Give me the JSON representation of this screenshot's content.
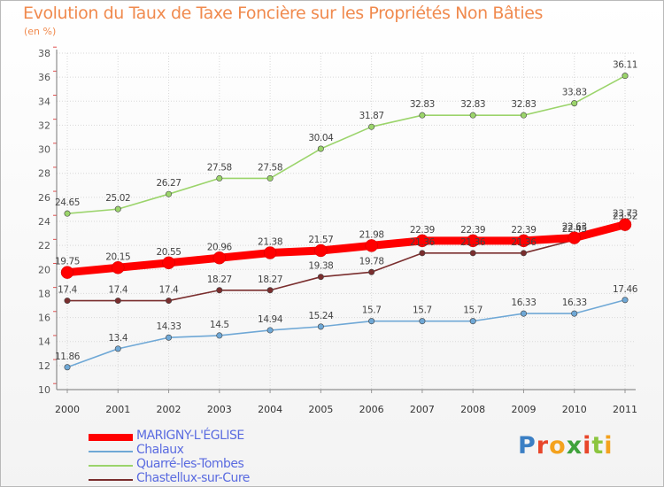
{
  "header": {
    "title": "Evolution du Taux de Taxe Foncière sur les Propriétés Non Bâties",
    "subtitle": "(en %)"
  },
  "logo": {
    "text": "Proxiti"
  },
  "chart_data": {
    "type": "line",
    "x": [
      "2000",
      "2001",
      "2002",
      "2003",
      "2004",
      "2005",
      "2006",
      "2007",
      "2008",
      "2009",
      "2010",
      "2011"
    ],
    "ylim": [
      10,
      38
    ],
    "yticks": [
      10,
      12,
      14,
      16,
      18,
      20,
      22,
      24,
      26,
      28,
      30,
      32,
      34,
      36,
      38
    ],
    "grid": true,
    "legend": "bottom-left",
    "series": [
      {
        "name": "MARIGNY-L'ÉGLISE",
        "color": "#ff0000",
        "values": [
          19.75,
          20.15,
          20.55,
          20.96,
          21.38,
          21.57,
          21.98,
          22.39,
          22.39,
          22.39,
          22.63,
          23.73
        ],
        "labels": [
          "19.75",
          "20.15",
          "20.55",
          "20.96",
          "21.38",
          "21.57",
          "21.98",
          "22.39",
          "22.39",
          "22.39",
          "22.63",
          "23.73"
        ]
      },
      {
        "name": "Chalaux",
        "color": "#6fa8d6",
        "values": [
          11.86,
          13.4,
          14.33,
          14.5,
          14.94,
          15.24,
          15.7,
          15.7,
          15.7,
          16.33,
          16.33,
          17.46
        ],
        "labels": [
          "11.86",
          "13.4",
          "14.33",
          "14.5",
          "14.94",
          "15.24",
          "15.7",
          "15.7",
          "15.7",
          "16.33",
          "16.33",
          "17.46"
        ]
      },
      {
        "name": "Quarré-les-Tombes",
        "color": "#9bd46b",
        "values": [
          24.65,
          25.02,
          26.27,
          27.58,
          27.58,
          30.04,
          31.87,
          32.83,
          32.83,
          32.83,
          33.83,
          36.11
        ],
        "labels": [
          "24.65",
          "25.02",
          "26.27",
          "27.58",
          "27.58",
          "30.04",
          "31.87",
          "32.83",
          "32.83",
          "32.83",
          "33.83",
          "36.11"
        ]
      },
      {
        "name": "Chastellux-sur-Cure",
        "color": "#7a2e2e",
        "values": [
          17.4,
          17.4,
          17.4,
          18.27,
          18.27,
          19.38,
          19.78,
          21.36,
          21.36,
          21.36,
          22.45,
          23.52
        ],
        "labels": [
          "17.4",
          "17.4",
          "17.4",
          "18.27",
          "18.27",
          "19.38",
          "19.78",
          "21.36",
          "21.36",
          "21.36",
          "22.45",
          "23.52"
        ]
      }
    ]
  }
}
